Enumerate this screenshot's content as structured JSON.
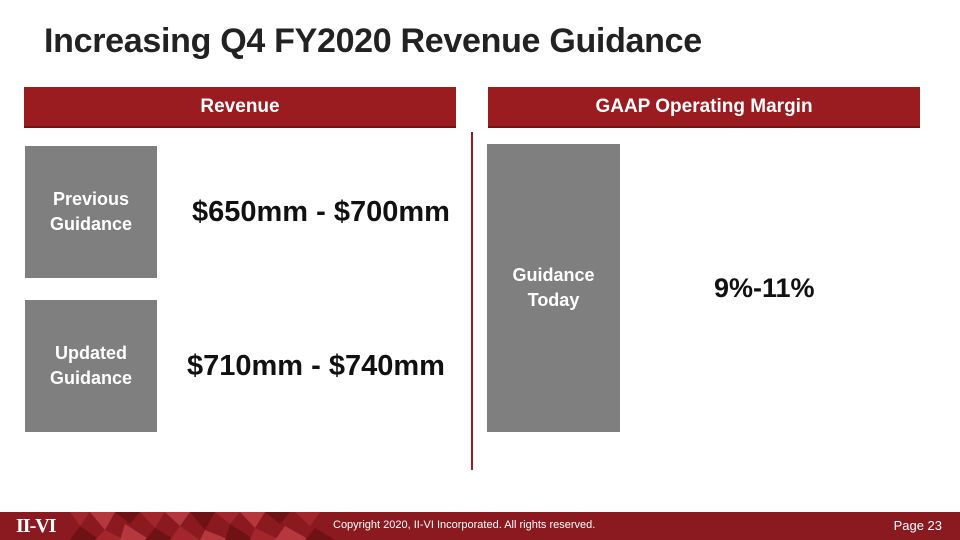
{
  "slide": {
    "title": "Increasing Q4 FY2020 Revenue Guidance"
  },
  "revenue": {
    "header": "Revenue",
    "previous_label": "Previous Guidance",
    "previous_value": "$650mm - $700mm",
    "updated_label": "Updated Guidance",
    "updated_value": "$710mm - $740mm"
  },
  "margin": {
    "header": "GAAP Operating Margin",
    "today_label": "Guidance Today",
    "today_value": "9%-11%"
  },
  "footer": {
    "logo": "II-VI",
    "copyright": "Copyright 2020, II-VI Incorporated. All rights reserved.",
    "page": "Page 23"
  },
  "colors": {
    "accent": "#9a1b20",
    "box_gray": "#7f7f7f"
  }
}
